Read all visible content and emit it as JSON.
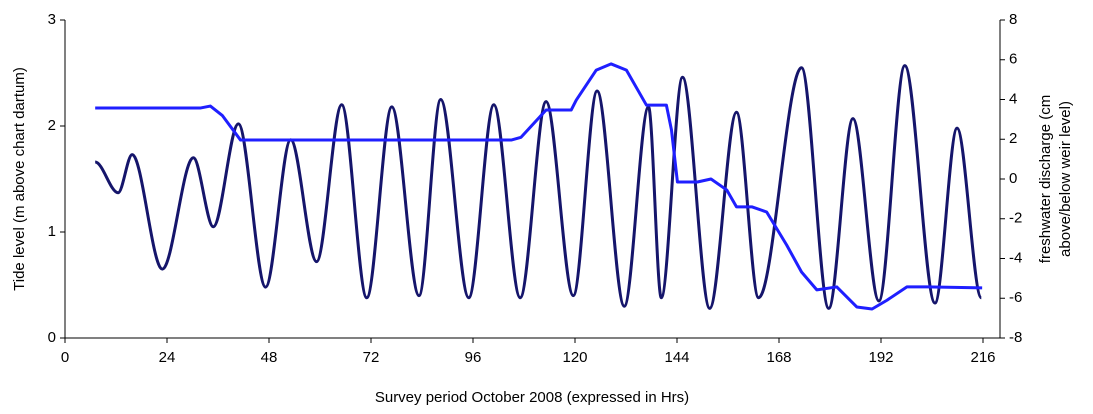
{
  "chart_data": {
    "type": "line",
    "xlabel": "Survey period October 2008 (expressed in Hrs)",
    "ylabel": "Tide level (m above chart dartum)",
    "y2label": [
      "freshwater discharge (cm",
      "above/below weir level)"
    ],
    "xlim": [
      0,
      220
    ],
    "xticks": [
      0,
      24,
      48,
      72,
      96,
      120,
      144,
      168,
      192,
      216
    ],
    "ylim": [
      0,
      3
    ],
    "yticks": [
      0,
      1,
      2,
      3
    ],
    "y2lim": [
      -8,
      8
    ],
    "y2ticks": [
      -8,
      -6,
      -4,
      -2,
      0,
      2,
      4,
      6,
      8
    ],
    "grid": false,
    "series": [
      {
        "name": "Tide level",
        "color": "#15156b",
        "axis": "y",
        "x": [
          7.1,
          12.5,
          15.8,
          22.9,
          30.2,
          34.9,
          40.8,
          47.2,
          53.1,
          59.2,
          65.1,
          71,
          76.9,
          83.3,
          88.4,
          95,
          100.9,
          107.1,
          113.2,
          119.6,
          125.2,
          131.6,
          137.3,
          140.3,
          145.3,
          151.7,
          158,
          163.2,
          173.3,
          179.7,
          185.4,
          191.5,
          197.6,
          204.7,
          209.9,
          215.6
        ],
        "values": [
          1.66,
          1.37,
          1.73,
          0.65,
          1.7,
          1.05,
          2.02,
          0.48,
          1.87,
          0.72,
          2.2,
          0.38,
          2.18,
          0.4,
          2.25,
          0.38,
          2.2,
          0.38,
          2.23,
          0.4,
          2.33,
          0.3,
          2.18,
          0.38,
          2.46,
          0.28,
          2.13,
          0.38,
          2.55,
          0.28,
          2.07,
          0.35,
          2.57,
          0.33,
          1.98,
          0.38
        ]
      },
      {
        "name": "Freshwater discharge",
        "color": "#1f1fff",
        "axis": "y2",
        "x": [
          7.1,
          31.8,
          34.2,
          37,
          41.3,
          105,
          107.3,
          113.2,
          119.1,
          120.3,
          125,
          128.5,
          132.1,
          136.8,
          141.5,
          142.7,
          144.1,
          148.8,
          152,
          155.7,
          158,
          161.6,
          165.1,
          169.8,
          173.3,
          176.9,
          181.6,
          186.3,
          189.9,
          193.4,
          198.1,
          202.8,
          215.8
        ],
        "values": [
          3.57,
          3.57,
          3.67,
          3.2,
          1.96,
          1.96,
          2.1,
          3.47,
          3.47,
          3.97,
          5.48,
          5.79,
          5.48,
          3.72,
          3.72,
          2.47,
          -0.15,
          -0.15,
          0,
          -0.55,
          -1.4,
          -1.4,
          -1.66,
          -3.32,
          -4.68,
          -5.58,
          -5.43,
          -6.44,
          -6.54,
          -6.1,
          -5.43,
          -5.43,
          -5.48
        ]
      }
    ]
  }
}
